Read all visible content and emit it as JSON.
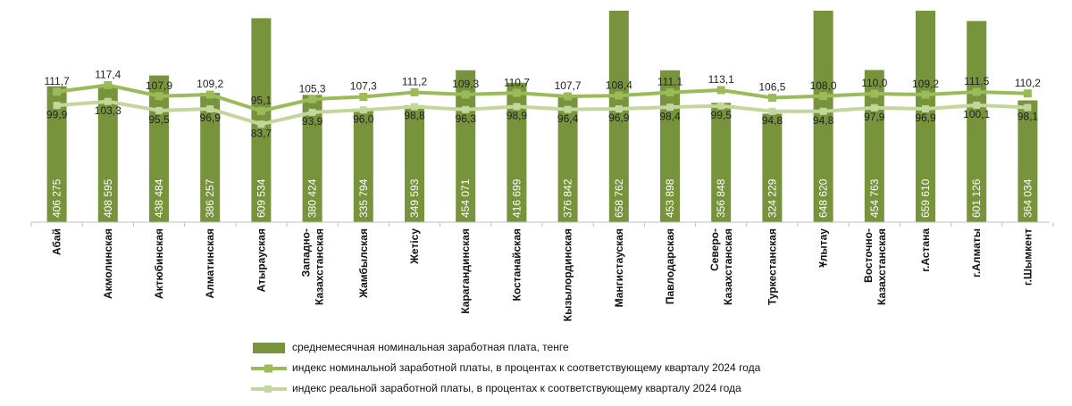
{
  "chart_data": {
    "type": "bar",
    "categories": [
      "Абай",
      "Акмолинская",
      "Актюбинская",
      "Алматинская",
      "Атырауская",
      "Западно-\nКазахстанская",
      "Жамбылская",
      "Жетісу",
      "Карагандинская",
      "Костанайская",
      "Кызылординская",
      "Мангистауская",
      "Павлодарская",
      "Северо-\nКазахстанская",
      "Туркестанская",
      "Ұлытау",
      "Восточно-\nКазахстанская",
      "г.Астана",
      "г.Алматы",
      "г.Шымкент"
    ],
    "series": [
      {
        "name": "среднемесячная номинальная заработная плата, тенге",
        "kind": "bar",
        "color": "#77933c",
        "values": [
          406275,
          408595,
          438484,
          386257,
          609534,
          380424,
          335794,
          349593,
          454071,
          416699,
          376842,
          658762,
          453898,
          356848,
          324229,
          648620,
          454763,
          659610,
          601126,
          364034
        ],
        "labels": [
          "406 275",
          "408 595",
          "438 484",
          "386 257",
          "609 534",
          "380 424",
          "335 794",
          "349 593",
          "454 071",
          "416 699",
          "376 842",
          "658 762",
          "453 898",
          "356 848",
          "324 229",
          "648 620",
          "454 763",
          "659 610",
          "601 126",
          "364 034"
        ]
      },
      {
        "name": "индекс номинальной заработной платы, в процентах к соответствующему кварталу 2024 года",
        "kind": "line",
        "color": "#9bbb59",
        "values": [
          111.7,
          117.4,
          107.9,
          109.2,
          95.1,
          105.3,
          107.3,
          111.2,
          109.3,
          110.7,
          107.7,
          108.4,
          111.1,
          113.1,
          106.5,
          108.0,
          110.0,
          109.2,
          111.5,
          110.2
        ],
        "labels": [
          "111,7",
          "117,4",
          "107,9",
          "109,2",
          "95,1",
          "105,3",
          "107,3",
          "111,2",
          "109,3",
          "110,7",
          "107,7",
          "108,4",
          "111,1",
          "113,1",
          "106,5",
          "108,0",
          "110,0",
          "109,2",
          "111,5",
          "110,2"
        ]
      },
      {
        "name": "индекс реальной заработной платы, в процентах к соответствующему кварталу 2024 года",
        "kind": "line",
        "color": "#c3d69b",
        "values": [
          99.9,
          103.3,
          95.5,
          96.9,
          83.7,
          93.9,
          96.0,
          98.8,
          96.3,
          98.9,
          96.4,
          96.9,
          98.4,
          99.5,
          94.8,
          94.8,
          97.9,
          96.9,
          100.1,
          98.1
        ],
        "labels": [
          "99,9",
          "103,3",
          "95,5",
          "96,9",
          "83,7",
          "93,9",
          "96,0",
          "98,8",
          "96,3",
          "98,9",
          "96,4",
          "96,9",
          "98,4",
          "99,5",
          "94,8",
          "94,8",
          "97,9",
          "96,9",
          "100,1",
          "98,1"
        ]
      }
    ],
    "legend_position": "bottom"
  }
}
